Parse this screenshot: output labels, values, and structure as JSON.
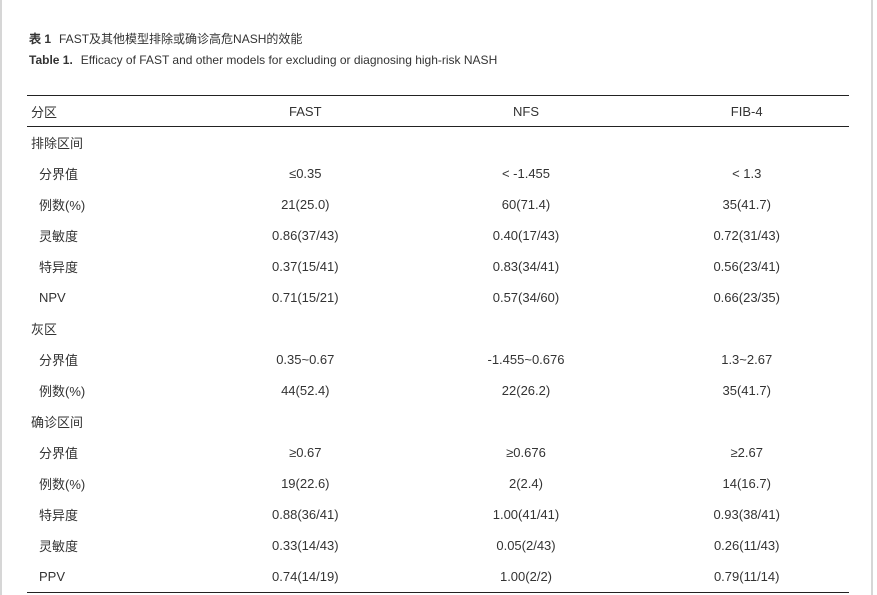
{
  "caption_cn": {
    "label": "表 1",
    "text": "FAST及其他模型排除或确诊高危NASH的效能"
  },
  "caption_en": {
    "label": "Table 1.",
    "text": "Efficacy of FAST and other models for excluding or diagnosing high-risk NASH"
  },
  "headers": [
    "分区",
    "FAST",
    "NFS",
    "FIB-4"
  ],
  "rows": [
    {
      "label": "排除区间",
      "section": true,
      "cells": [
        "",
        "",
        ""
      ]
    },
    {
      "label": "分界值",
      "cells": [
        "≤0.35",
        "< -1.455",
        "< 1.3"
      ]
    },
    {
      "label": "例数(%)",
      "cells": [
        "21(25.0)",
        "60(71.4)",
        "35(41.7)"
      ]
    },
    {
      "label": "灵敏度",
      "cells": [
        "0.86(37/43)",
        "0.40(17/43)",
        "0.72(31/43)"
      ]
    },
    {
      "label": "特异度",
      "cells": [
        "0.37(15/41)",
        "0.83(34/41)",
        "0.56(23/41)"
      ]
    },
    {
      "label": "NPV",
      "cells": [
        "0.71(15/21)",
        "0.57(34/60)",
        "0.66(23/35)"
      ]
    },
    {
      "label": "灰区",
      "section": true,
      "cells": [
        "",
        "",
        ""
      ]
    },
    {
      "label": "分界值",
      "cells": [
        "0.35~0.67",
        "-1.455~0.676",
        "1.3~2.67"
      ]
    },
    {
      "label": "例数(%)",
      "cells": [
        "44(52.4)",
        "22(26.2)",
        "35(41.7)"
      ]
    },
    {
      "label": "确诊区间",
      "section": true,
      "cells": [
        "",
        "",
        ""
      ]
    },
    {
      "label": "分界值",
      "cells": [
        "≥0.67",
        "≥0.676",
        "≥2.67"
      ]
    },
    {
      "label": "例数(%)",
      "cells": [
        "19(22.6)",
        "2(2.4)",
        "14(16.7)"
      ]
    },
    {
      "label": "特异度",
      "cells": [
        "0.88(36/41)",
        "1.00(41/41)",
        "0.93(38/41)"
      ]
    },
    {
      "label": "灵敏度",
      "cells": [
        "0.33(14/43)",
        "0.05(2/43)",
        "0.26(11/43)"
      ]
    },
    {
      "label": "PPV",
      "cells": [
        "0.74(14/19)",
        "1.00(2/2)",
        "0.79(11/14)"
      ]
    }
  ]
}
